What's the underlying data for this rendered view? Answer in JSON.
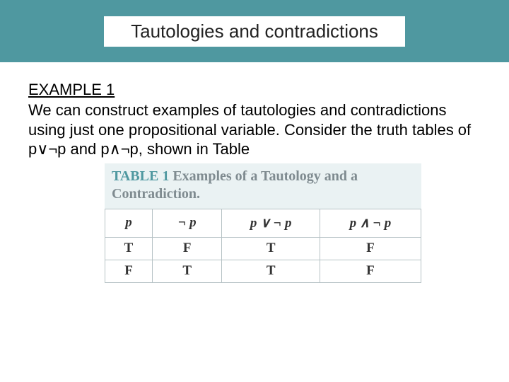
{
  "header": {
    "title": "Tautologies and contradictions"
  },
  "example": {
    "label": "EXAMPLE 1",
    "text": "We can construct examples of tautologies and contradictions using just one propositional variable. Consider the truth tables of p∨¬p and p∧¬p, shown in Table"
  },
  "table": {
    "caption_label": "TABLE 1",
    "caption_rest": "Examples of a Tautology and a Contradiction.",
    "columns": {
      "c0": "p",
      "c1": "¬ p",
      "c2": "p ∨ ¬ p",
      "c3": "p ∧ ¬ p"
    },
    "rows": [
      {
        "c0": "T",
        "c1": "F",
        "c2": "T",
        "c3": "F"
      },
      {
        "c0": "F",
        "c1": "T",
        "c2": "T",
        "c3": "F"
      }
    ],
    "style": {
      "header_bg": "#eaf2f3",
      "border_color": "#b6c2c5",
      "label_color": "#4f98a0",
      "caption_text_color": "#7f8b90",
      "font_family": "Georgia",
      "col_widths_pct": [
        15,
        22,
        31,
        32
      ]
    }
  },
  "colors": {
    "band": "#4f98a0",
    "page_bg": "#ffffff"
  }
}
